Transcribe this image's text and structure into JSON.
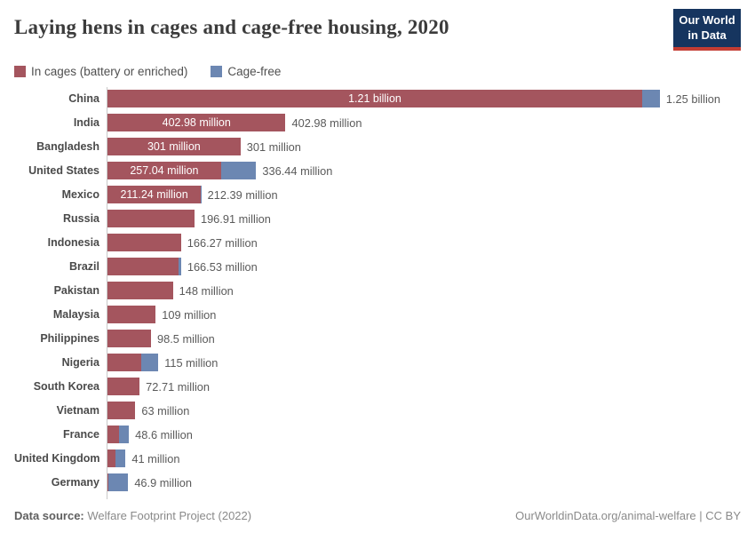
{
  "header": {
    "title": "Laying hens in cages and cage-free housing, 2020",
    "logo_line1": "Our World",
    "logo_line2": "in Data"
  },
  "colors": {
    "caged": "#a4555e",
    "cage_free": "#6c87b2",
    "logo_navy": "#16355f",
    "logo_red": "#c33d33"
  },
  "chart_data": {
    "type": "bar",
    "orientation": "horizontal",
    "title": "Laying hens in cages and cage-free housing, 2020",
    "unit": "million laying hens",
    "xlim": [
      0,
      1250
    ],
    "grid": false,
    "legend_position": "top",
    "categories": [
      "China",
      "India",
      "Bangladesh",
      "United States",
      "Mexico",
      "Russia",
      "Indonesia",
      "Brazil",
      "Pakistan",
      "Malaysia",
      "Philippines",
      "Nigeria",
      "South Korea",
      "Vietnam",
      "France",
      "United Kingdom",
      "Germany"
    ],
    "series": [
      {
        "name": "In cages (battery or enriched)",
        "color": "#a4555e",
        "values": [
          1210,
          402.98,
          301,
          257.04,
          211.24,
          196.91,
          166.27,
          160,
          148,
          109,
          98.5,
          77,
          72.71,
          63,
          26.6,
          17.5,
          3
        ]
      },
      {
        "name": "Cage-free",
        "color": "#6c87b2",
        "values": [
          40,
          0,
          0,
          79.4,
          1.15,
          0,
          0,
          6.53,
          0,
          0,
          0,
          38,
          0,
          0,
          22,
          23.5,
          43.9
        ]
      }
    ],
    "inside_labels": [
      "1.21 billion",
      "402.98 million",
      "301 million",
      "257.04 million",
      "211.24 million",
      "",
      "",
      "",
      "",
      "",
      "",
      "",
      "",
      "",
      "",
      "",
      ""
    ],
    "total_labels": [
      "1.25 billion",
      "402.98 million",
      "301 million",
      "336.44 million",
      "212.39 million",
      "196.91 million",
      "166.27 million",
      "166.53 million",
      "148 million",
      "109 million",
      "98.5 million",
      "115 million",
      "72.71 million",
      "63 million",
      "48.6 million",
      "41 million",
      "46.9 million"
    ]
  },
  "footer": {
    "datasource_label": "Data source:",
    "datasource_value": " Welfare Footprint Project (2022)",
    "credit": "OurWorldinData.org/animal-welfare | CC BY"
  }
}
